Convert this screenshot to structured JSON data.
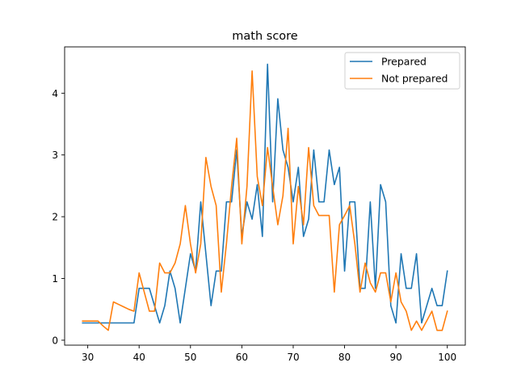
{
  "chart_data": {
    "type": "line",
    "title": "math score",
    "xlabel": "",
    "ylabel": "",
    "xlim": [
      25.5,
      103.5
    ],
    "ylim": [
      -0.08,
      4.75
    ],
    "xticks": [
      30,
      40,
      50,
      60,
      70,
      80,
      90,
      100
    ],
    "yticks": [
      0,
      1,
      2,
      3,
      4
    ],
    "grid": false,
    "legend_position": "top-right",
    "series": [
      {
        "name": "Prepared",
        "color": "#1f77b4",
        "x": [
          29,
          30,
          31,
          32,
          33,
          34,
          35,
          36,
          37,
          38,
          39,
          40,
          41,
          42,
          43,
          44,
          45,
          46,
          47,
          48,
          49,
          50,
          51,
          52,
          53,
          54,
          55,
          56,
          57,
          58,
          59,
          60,
          61,
          62,
          63,
          64,
          65,
          66,
          67,
          68,
          69,
          70,
          71,
          72,
          73,
          74,
          75,
          76,
          77,
          78,
          79,
          80,
          81,
          82,
          83,
          84,
          85,
          86,
          87,
          88,
          89,
          90,
          91,
          92,
          93,
          94,
          95,
          97,
          98,
          99,
          100
        ],
        "values": [
          0.28,
          0.28,
          0.28,
          0.28,
          0.28,
          0.28,
          0.28,
          0.28,
          0.28,
          0.28,
          0.28,
          0.84,
          0.84,
          0.84,
          0.56,
          0.28,
          0.56,
          1.12,
          0.84,
          0.28,
          0.84,
          1.4,
          1.12,
          2.24,
          1.4,
          0.56,
          1.12,
          1.12,
          2.24,
          2.24,
          3.08,
          1.68,
          2.24,
          1.96,
          2.52,
          1.68,
          4.47,
          2.24,
          3.91,
          3.08,
          2.8,
          2.24,
          2.8,
          1.68,
          1.96,
          3.08,
          2.24,
          2.24,
          3.08,
          2.52,
          2.8,
          1.12,
          2.24,
          2.24,
          0.84,
          0.84,
          2.24,
          0.84,
          2.52,
          2.24,
          0.56,
          0.28,
          1.4,
          0.84,
          0.84,
          1.4,
          0.28,
          0.84,
          0.56,
          0.56,
          1.12
        ]
      },
      {
        "name": "Not prepared",
        "color": "#ff7f0e",
        "x": [
          29,
          30,
          31,
          32,
          33,
          34,
          35,
          36,
          37,
          38,
          39,
          40,
          41,
          42,
          43,
          44,
          45,
          46,
          47,
          48,
          49,
          50,
          51,
          52,
          53,
          54,
          55,
          56,
          57,
          58,
          59,
          60,
          61,
          62,
          63,
          64,
          65,
          66,
          67,
          68,
          69,
          70,
          71,
          72,
          73,
          74,
          75,
          76,
          77,
          78,
          79,
          80,
          81,
          82,
          83,
          84,
          85,
          86,
          87,
          88,
          89,
          90,
          91,
          92,
          93,
          94,
          95,
          97,
          98,
          99,
          100
        ],
        "values": [
          0.31,
          0.31,
          0.31,
          0.31,
          0.23,
          0.16,
          0.62,
          0.58,
          0.54,
          0.5,
          0.47,
          1.09,
          0.78,
          0.47,
          0.47,
          1.25,
          1.09,
          1.09,
          1.25,
          1.56,
          2.18,
          1.56,
          1.09,
          1.56,
          2.96,
          2.49,
          2.18,
          0.78,
          1.56,
          2.49,
          3.27,
          1.56,
          2.49,
          4.36,
          2.65,
          2.18,
          3.12,
          2.49,
          1.87,
          2.34,
          3.43,
          1.56,
          2.49,
          1.87,
          3.12,
          2.18,
          2.02,
          2.02,
          2.02,
          0.78,
          1.87,
          2.02,
          2.18,
          1.56,
          0.78,
          1.25,
          0.93,
          0.78,
          1.09,
          1.09,
          0.62,
          1.09,
          0.62,
          0.47,
          0.16,
          0.31,
          0.16,
          0.47,
          0.16,
          0.16,
          0.47
        ]
      }
    ]
  }
}
